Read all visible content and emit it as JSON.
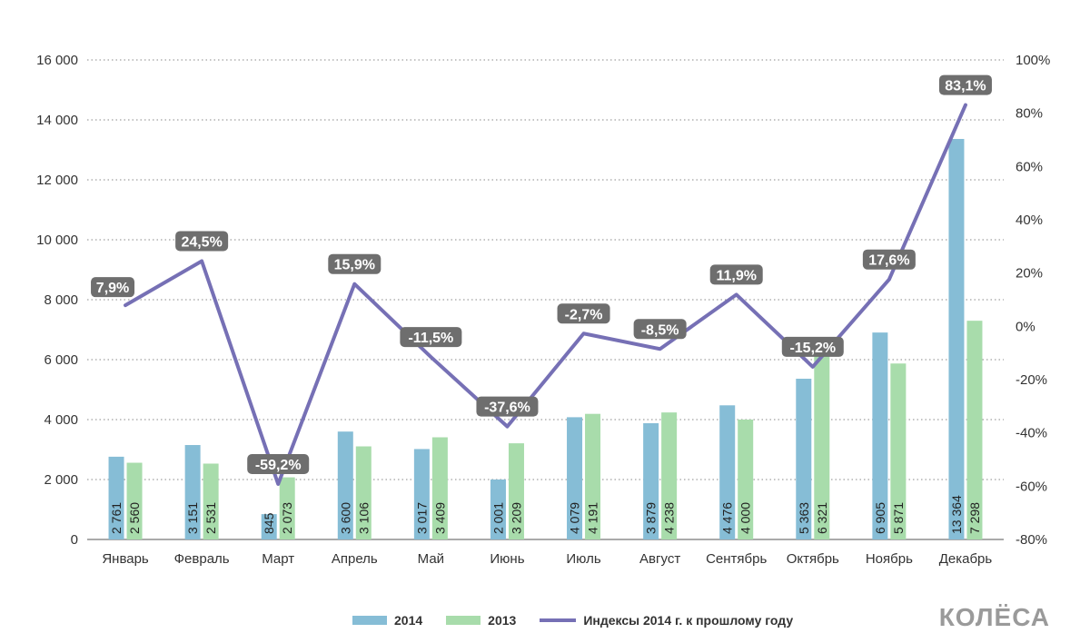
{
  "chart_data": {
    "type": "bar",
    "categories": [
      "Январь",
      "Февраль",
      "Март",
      "Апрель",
      "Май",
      "Июнь",
      "Июль",
      "Август",
      "Сентябрь",
      "Октябрь",
      "Ноябрь",
      "Декабрь"
    ],
    "series": [
      {
        "name": "2014",
        "values": [
          2761,
          3151,
          845,
          3600,
          3017,
          2001,
          4079,
          3879,
          4476,
          5363,
          6905,
          13364
        ],
        "labels": [
          "2 761",
          "3 151",
          "845",
          "3 600",
          "3 017",
          "2 001",
          "4 079",
          "3 879",
          "4 476",
          "5 363",
          "6 905",
          "13 364"
        ]
      },
      {
        "name": "2013",
        "values": [
          2560,
          2531,
          2073,
          3106,
          3409,
          3209,
          4191,
          4238,
          4000,
          6321,
          5871,
          7298
        ],
        "labels": [
          "2 560",
          "2 531",
          "2 073",
          "3 106",
          "3 409",
          "3 209",
          "4 191",
          "4 238",
          "4 000",
          "6 321",
          "5 871",
          "7 298"
        ]
      }
    ],
    "line_series": {
      "name": "Индексы 2014 г. к прошлому году",
      "type": "line",
      "axis": "right",
      "values": [
        7.9,
        24.5,
        -59.2,
        15.9,
        -11.5,
        -37.6,
        -2.7,
        -8.5,
        11.9,
        -15.2,
        17.6,
        83.1
      ],
      "labels": [
        "7,9%",
        "24,5%",
        "-59,2%",
        "15,9%",
        "-11,5%",
        "-37,6%",
        "-2,7%",
        "-8,5%",
        "11,9%",
        "-15,2%",
        "17,6%",
        "83,1%"
      ]
    },
    "left_axis": {
      "ylim": [
        0,
        16000
      ],
      "ticks": [
        "0",
        "2 000",
        "4 000",
        "6 000",
        "8 000",
        "10 000",
        "12 000",
        "14 000",
        "16 000"
      ]
    },
    "right_axis": {
      "ylim": [
        -80,
        100
      ],
      "ticks": [
        "-80%",
        "-60%",
        "-40%",
        "-20%",
        "0%",
        "20%",
        "40%",
        "60%",
        "80%",
        "100%"
      ]
    },
    "grid": true,
    "legend_position": "bottom"
  },
  "colors": {
    "bar_2014": "#86bdd6",
    "bar_2013": "#a8dcab",
    "line": "#7670b5",
    "label_box": "#6e6e6e",
    "grid": "#888888"
  },
  "logo": "КОЛЁСА"
}
